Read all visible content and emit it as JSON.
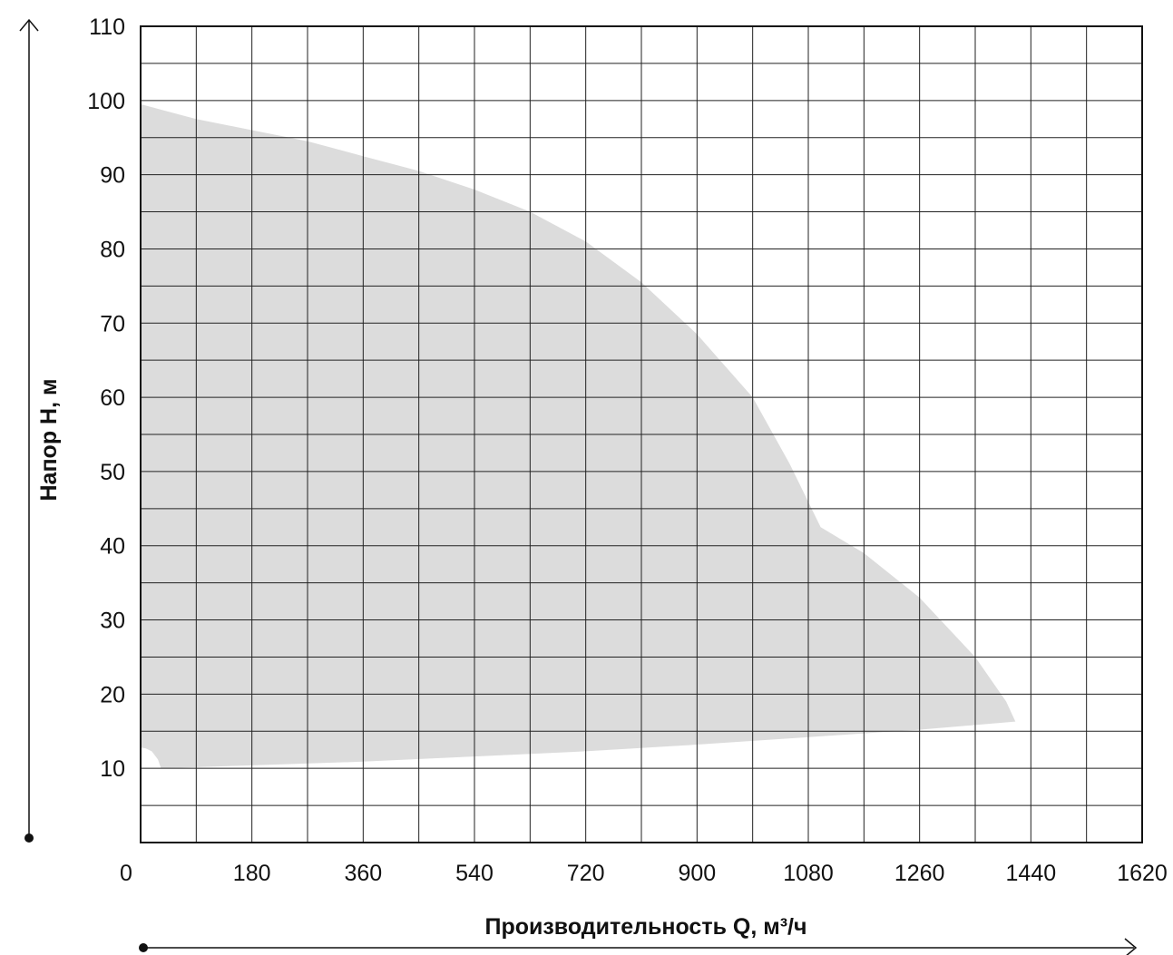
{
  "chart_data": {
    "type": "area",
    "title": "",
    "xlabel": "Производительность Q, м³/ч",
    "ylabel": "Напор H, м",
    "xlim": [
      0,
      1620
    ],
    "ylim": [
      0,
      110
    ],
    "x_ticks": [
      "0",
      "180",
      "360",
      "540",
      "720",
      "900",
      "1080",
      "1260",
      "1440",
      "1620"
    ],
    "y_ticks": [
      "10",
      "20",
      "30",
      "40",
      "50",
      "60",
      "70",
      "80",
      "90",
      "100",
      "110"
    ],
    "x_tick_values": [
      0,
      180,
      360,
      540,
      720,
      900,
      1080,
      1260,
      1440,
      1620
    ],
    "y_tick_values": [
      10,
      20,
      30,
      40,
      50,
      60,
      70,
      80,
      90,
      100,
      110
    ],
    "grid": true,
    "grid_x_step": 90,
    "grid_y_step": 5,
    "fill_color": "#dcdcdc",
    "region": {
      "upper_boundary": [
        {
          "x": 0,
          "y": 99.5
        },
        {
          "x": 90,
          "y": 97.5
        },
        {
          "x": 180,
          "y": 96
        },
        {
          "x": 270,
          "y": 94.5
        },
        {
          "x": 360,
          "y": 92.5
        },
        {
          "x": 450,
          "y": 90.5
        },
        {
          "x": 540,
          "y": 88
        },
        {
          "x": 630,
          "y": 85
        },
        {
          "x": 720,
          "y": 81
        },
        {
          "x": 810,
          "y": 75.5
        },
        {
          "x": 900,
          "y": 68.5
        },
        {
          "x": 990,
          "y": 60
        },
        {
          "x": 1050,
          "y": 51
        },
        {
          "x": 1100,
          "y": 42.5
        },
        {
          "x": 1170,
          "y": 39
        },
        {
          "x": 1260,
          "y": 33
        },
        {
          "x": 1350,
          "y": 25
        },
        {
          "x": 1400,
          "y": 19
        },
        {
          "x": 1415,
          "y": 16.3
        }
      ],
      "lower_boundary": [
        {
          "x": 1415,
          "y": 16.3
        },
        {
          "x": 1260,
          "y": 15.2
        },
        {
          "x": 1080,
          "y": 14.2
        },
        {
          "x": 900,
          "y": 13.2
        },
        {
          "x": 720,
          "y": 12.3
        },
        {
          "x": 540,
          "y": 11.6
        },
        {
          "x": 360,
          "y": 10.9
        },
        {
          "x": 180,
          "y": 10.4
        },
        {
          "x": 33,
          "y": 10
        },
        {
          "x": 28,
          "y": 11.2
        },
        {
          "x": 18,
          "y": 12.3
        },
        {
          "x": 8,
          "y": 12.7
        },
        {
          "x": 0,
          "y": 12.8
        }
      ]
    }
  }
}
